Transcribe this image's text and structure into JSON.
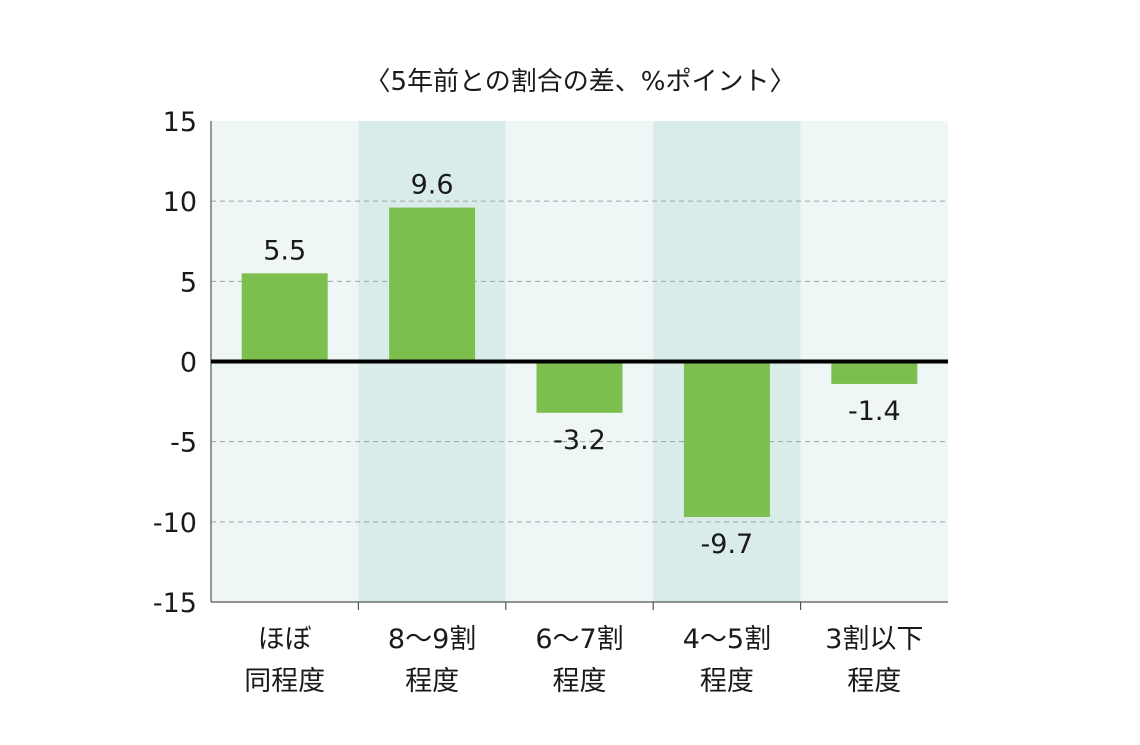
{
  "chart_data": {
    "type": "bar",
    "title": "〈5年前との割合の差、%ポイント〉",
    "categories": [
      [
        "ほぼ",
        "同程度"
      ],
      [
        "8〜9割",
        "程度"
      ],
      [
        "6〜7割",
        "程度"
      ],
      [
        "4〜5割",
        "程度"
      ],
      [
        "3割以下",
        "程度"
      ]
    ],
    "values": [
      5.5,
      9.6,
      -3.2,
      -9.7,
      -1.4
    ],
    "data_labels": [
      "5.5",
      "9.6",
      "-3.2",
      "-9.7",
      "-1.4"
    ],
    "ylim": [
      -15,
      15
    ],
    "yticks": [
      15,
      10,
      5,
      0,
      -5,
      -10,
      -15
    ],
    "ytick_labels": [
      "15",
      "10",
      "5",
      "0",
      "-5",
      "-10",
      "-15"
    ],
    "xlabel": "",
    "ylabel": "",
    "grid": "dashed horizontal",
    "legend": "none",
    "colors": {
      "bar": "#7dbf4e",
      "band_light": "#eef7f5",
      "band_dark": "#d9ecea",
      "gridline": "#9aa6a6",
      "zero_line": "#000000",
      "axis": "#555555"
    }
  }
}
